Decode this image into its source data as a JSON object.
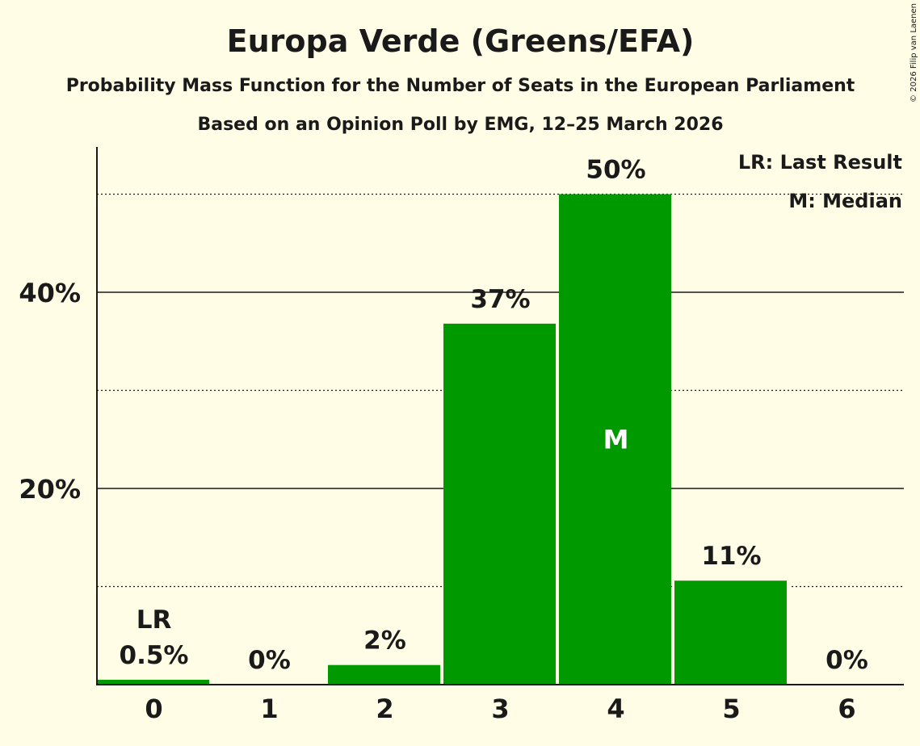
{
  "chart_data": {
    "type": "bar",
    "title": "Europa Verde (Greens/EFA)",
    "subtitle": "Probability Mass Function for the Number of Seats in the European Parliament",
    "subtitle2": "Based on an Opinion Poll by EMG, 12–25 March 2026",
    "categories": [
      "0",
      "1",
      "2",
      "3",
      "4",
      "5",
      "6"
    ],
    "values": [
      0.5,
      0,
      2,
      36.8,
      50,
      10.6,
      0
    ],
    "data_labels": [
      "0.5%",
      "0%",
      "2%",
      "37%",
      "50%",
      "11%",
      "0%"
    ],
    "ylim": [
      0,
      55
    ],
    "yticks": [
      20,
      40
    ],
    "ytick_labels": [
      "20%",
      "40%"
    ],
    "dotted_gridlines": [
      10,
      30,
      50
    ],
    "last_result_index": 0,
    "last_result_marker": "LR",
    "median_index": 4,
    "median_marker": "M",
    "legend": [
      "LR: Last Result",
      "M: Median"
    ],
    "legend_position": "top-right",
    "copyright": "© 2026 Filip van Laenen",
    "bar_color": "#009900"
  }
}
